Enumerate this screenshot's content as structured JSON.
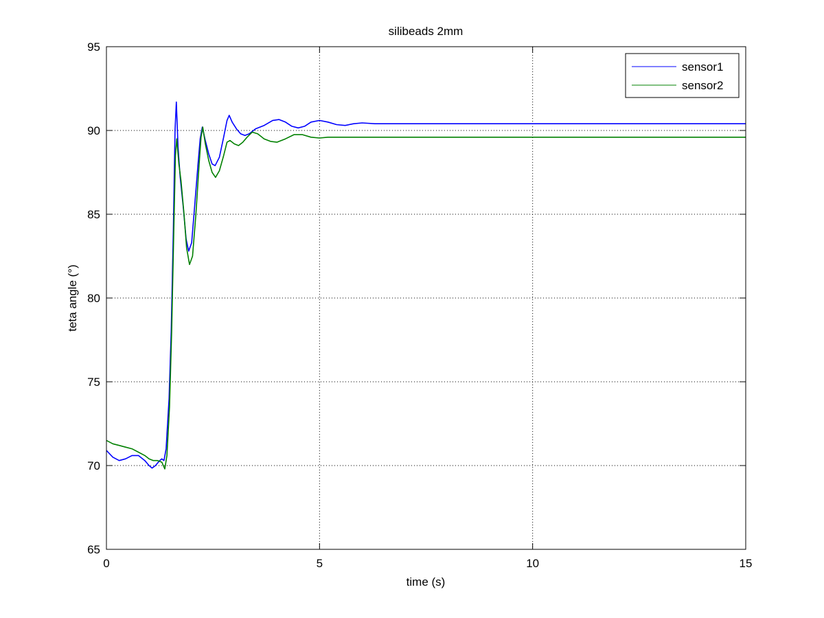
{
  "chart_data": {
    "type": "line",
    "title": "silibeads 2mm",
    "xlabel": "time (s)",
    "ylabel": "teta angle (°)",
    "xlim": [
      0,
      15
    ],
    "ylim": [
      65,
      95
    ],
    "xticks": [
      0,
      5,
      10,
      15
    ],
    "yticks": [
      65,
      70,
      75,
      80,
      85,
      90,
      95
    ],
    "grid": true,
    "legend_position": "top-right",
    "series": [
      {
        "name": "sensor1",
        "color": "#0000ff",
        "points": [
          [
            0.0,
            70.9
          ],
          [
            0.15,
            70.5
          ],
          [
            0.3,
            70.3
          ],
          [
            0.45,
            70.4
          ],
          [
            0.6,
            70.6
          ],
          [
            0.75,
            70.6
          ],
          [
            0.9,
            70.3
          ],
          [
            1.0,
            70.0
          ],
          [
            1.07,
            69.85
          ],
          [
            1.15,
            70.0
          ],
          [
            1.25,
            70.3
          ],
          [
            1.3,
            70.4
          ],
          [
            1.35,
            70.3
          ],
          [
            1.4,
            71.0
          ],
          [
            1.47,
            74.0
          ],
          [
            1.52,
            78.0
          ],
          [
            1.57,
            84.0
          ],
          [
            1.61,
            90.0
          ],
          [
            1.64,
            91.7
          ],
          [
            1.68,
            89.0
          ],
          [
            1.73,
            87.2
          ],
          [
            1.8,
            85.5
          ],
          [
            1.87,
            83.5
          ],
          [
            1.93,
            82.8
          ],
          [
            2.0,
            83.3
          ],
          [
            2.07,
            85.5
          ],
          [
            2.15,
            88.0
          ],
          [
            2.2,
            89.5
          ],
          [
            2.25,
            90.2
          ],
          [
            2.32,
            89.4
          ],
          [
            2.4,
            88.6
          ],
          [
            2.48,
            88.0
          ],
          [
            2.55,
            87.9
          ],
          [
            2.65,
            88.4
          ],
          [
            2.75,
            89.6
          ],
          [
            2.83,
            90.6
          ],
          [
            2.88,
            90.9
          ],
          [
            2.95,
            90.5
          ],
          [
            3.05,
            90.1
          ],
          [
            3.15,
            89.8
          ],
          [
            3.25,
            89.7
          ],
          [
            3.35,
            89.8
          ],
          [
            3.5,
            90.1
          ],
          [
            3.7,
            90.3
          ],
          [
            3.9,
            90.6
          ],
          [
            4.05,
            90.65
          ],
          [
            4.2,
            90.5
          ],
          [
            4.35,
            90.25
          ],
          [
            4.5,
            90.15
          ],
          [
            4.65,
            90.25
          ],
          [
            4.8,
            90.5
          ],
          [
            5.0,
            90.6
          ],
          [
            5.2,
            90.5
          ],
          [
            5.4,
            90.35
          ],
          [
            5.6,
            90.3
          ],
          [
            5.8,
            90.4
          ],
          [
            6.0,
            90.45
          ],
          [
            6.3,
            90.4
          ],
          [
            6.8,
            90.4
          ],
          [
            7.5,
            90.4
          ],
          [
            8.5,
            90.4
          ],
          [
            9.5,
            90.4
          ],
          [
            10.5,
            90.4
          ],
          [
            11.5,
            90.4
          ],
          [
            12.5,
            90.4
          ],
          [
            13.5,
            90.4
          ],
          [
            14.5,
            90.4
          ],
          [
            15.0,
            90.4
          ]
        ]
      },
      {
        "name": "sensor2",
        "color": "#008000",
        "points": [
          [
            0.0,
            71.5
          ],
          [
            0.15,
            71.3
          ],
          [
            0.3,
            71.2
          ],
          [
            0.45,
            71.1
          ],
          [
            0.6,
            71.0
          ],
          [
            0.75,
            70.8
          ],
          [
            0.9,
            70.6
          ],
          [
            1.0,
            70.4
          ],
          [
            1.1,
            70.3
          ],
          [
            1.2,
            70.3
          ],
          [
            1.3,
            70.2
          ],
          [
            1.37,
            69.8
          ],
          [
            1.42,
            70.6
          ],
          [
            1.48,
            73.5
          ],
          [
            1.53,
            78.0
          ],
          [
            1.58,
            84.0
          ],
          [
            1.62,
            88.5
          ],
          [
            1.65,
            89.5
          ],
          [
            1.7,
            88.0
          ],
          [
            1.75,
            87.0
          ],
          [
            1.82,
            85.0
          ],
          [
            1.88,
            83.0
          ],
          [
            1.95,
            82.0
          ],
          [
            2.02,
            82.5
          ],
          [
            2.1,
            85.0
          ],
          [
            2.17,
            87.8
          ],
          [
            2.22,
            89.6
          ],
          [
            2.26,
            90.2
          ],
          [
            2.32,
            89.2
          ],
          [
            2.4,
            88.2
          ],
          [
            2.48,
            87.5
          ],
          [
            2.56,
            87.2
          ],
          [
            2.65,
            87.6
          ],
          [
            2.75,
            88.5
          ],
          [
            2.83,
            89.3
          ],
          [
            2.9,
            89.4
          ],
          [
            3.0,
            89.2
          ],
          [
            3.1,
            89.1
          ],
          [
            3.2,
            89.3
          ],
          [
            3.3,
            89.6
          ],
          [
            3.42,
            89.9
          ],
          [
            3.55,
            89.8
          ],
          [
            3.7,
            89.5
          ],
          [
            3.85,
            89.35
          ],
          [
            4.0,
            89.3
          ],
          [
            4.2,
            89.5
          ],
          [
            4.4,
            89.75
          ],
          [
            4.6,
            89.75
          ],
          [
            4.8,
            89.6
          ],
          [
            5.0,
            89.55
          ],
          [
            5.2,
            89.6
          ],
          [
            5.5,
            89.6
          ],
          [
            6.0,
            89.6
          ],
          [
            7.0,
            89.6
          ],
          [
            8.0,
            89.6
          ],
          [
            9.0,
            89.6
          ],
          [
            10.0,
            89.6
          ],
          [
            11.0,
            89.6
          ],
          [
            12.0,
            89.6
          ],
          [
            13.0,
            89.6
          ],
          [
            14.0,
            89.6
          ],
          [
            15.0,
            89.6
          ]
        ]
      }
    ]
  }
}
